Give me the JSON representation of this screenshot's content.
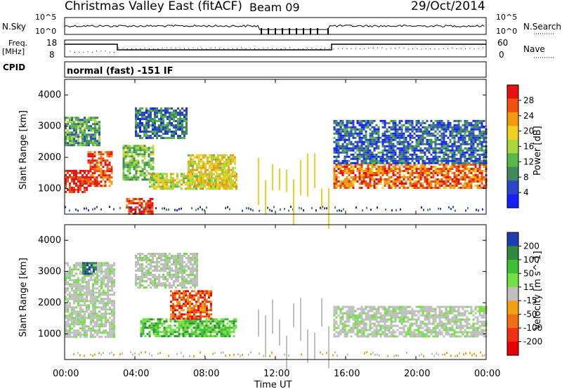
{
  "header": {
    "title": "Christmas Valley East (fitACF)",
    "beam": "Beam 09",
    "date": "29/Oct/2014"
  },
  "status_panels": {
    "nsky_label": "N.Sky",
    "nsky_scale_top": "10^5",
    "nsky_scale_bottom": "10^0",
    "nsearch_label": "N.Search",
    "nsearch_scale_top": "10^5",
    "nsearch_scale_bottom": "10^0",
    "freq_label_line1": "Freq.",
    "freq_label_line2": "[MHz]",
    "freq_ticks": [
      "18",
      "8"
    ],
    "nave_label": "Nave",
    "nave_ticks": [
      "60",
      "0"
    ],
    "cpid_label": "CPID",
    "cpid_text": "normal (fast) -151 IF"
  },
  "x_axis": {
    "label": "Time UT",
    "ticks": [
      "00:00",
      "04:00",
      "08:00",
      "12:00",
      "16:00",
      "20:00",
      "00:00"
    ]
  },
  "chart_data": [
    {
      "type": "heatmap",
      "quantity": "Power",
      "xlabel": "Time UT",
      "ylabel": "Slant Range [km]",
      "y_ticks": [
        "1000",
        "2000",
        "3000",
        "4000"
      ],
      "ylim": [
        180,
        4500
      ],
      "colorbar_label": "Power [dB]",
      "colorbar_ticks": [
        "4",
        "8",
        "12",
        "16",
        "20",
        "24",
        "28"
      ],
      "colorbar_colors": [
        "#1420ff",
        "#2c46c8",
        "#3f8a5c",
        "#58b84a",
        "#a8d83a",
        "#f0d020",
        "#f09a10",
        "#f05010",
        "#e81010"
      ],
      "bands": [
        {
          "x": [
            0.0,
            1.3
          ],
          "y": [
            900,
            1600
          ],
          "level": 0.95
        },
        {
          "x": [
            1.3,
            2.7
          ],
          "y": [
            1100,
            2200
          ],
          "level": 0.85
        },
        {
          "x": [
            3.3,
            5.0
          ],
          "y": [
            1300,
            2400
          ],
          "level": 0.4
        },
        {
          "x": [
            4.8,
            9.8
          ],
          "y": [
            1000,
            1500
          ],
          "level": 0.55
        },
        {
          "x": [
            7.0,
            9.7
          ],
          "y": [
            1100,
            2100
          ],
          "level": 0.6
        },
        {
          "x": [
            0.0,
            2.0
          ],
          "y": [
            2400,
            3300
          ],
          "level": 0.35
        },
        {
          "x": [
            4.0,
            7.0
          ],
          "y": [
            2600,
            3600
          ],
          "level": 0.25
        },
        {
          "x": [
            15.3,
            24.0
          ],
          "y": [
            1000,
            1800
          ],
          "level": 0.8
        },
        {
          "x": [
            15.3,
            24.0
          ],
          "y": [
            1800,
            3200
          ],
          "level": 0.2
        },
        {
          "x": [
            3.5,
            5.0
          ],
          "y": [
            200,
            700
          ],
          "level": 0.9
        }
      ]
    },
    {
      "type": "heatmap",
      "quantity": "Velocity",
      "xlabel": "Time UT",
      "ylabel": "Slant Range [km]",
      "y_ticks": [
        "1000",
        "2000",
        "3000",
        "4000"
      ],
      "ylim": [
        180,
        4500
      ],
      "colorbar_label": "Velocity [m s^-1]",
      "colorbar_ticks": [
        "200",
        "100",
        "50",
        "15",
        "-15",
        "-50",
        "-100",
        "-200"
      ],
      "colorbar_colors": [
        "#1e3cb4",
        "#2e8a3a",
        "#3cbf30",
        "#72e040",
        "#bfbfbf",
        "#f0a010",
        "#f07010",
        "#f03010",
        "#e80000"
      ],
      "bands": [
        {
          "x": [
            0.0,
            2.8
          ],
          "y": [
            900,
            3300
          ],
          "class": "grey"
        },
        {
          "x": [
            4.3,
            9.8
          ],
          "y": [
            900,
            1500
          ],
          "class": "green"
        },
        {
          "x": [
            6.0,
            8.3
          ],
          "y": [
            1500,
            2400
          ],
          "class": "orange"
        },
        {
          "x": [
            4.0,
            7.5
          ],
          "y": [
            2500,
            3600
          ],
          "class": "grey"
        },
        {
          "x": [
            15.3,
            24.0
          ],
          "y": [
            900,
            1900
          ],
          "class": "grey"
        },
        {
          "x": [
            1.0,
            1.8
          ],
          "y": [
            2900,
            3300
          ],
          "class": "blue"
        }
      ]
    }
  ]
}
